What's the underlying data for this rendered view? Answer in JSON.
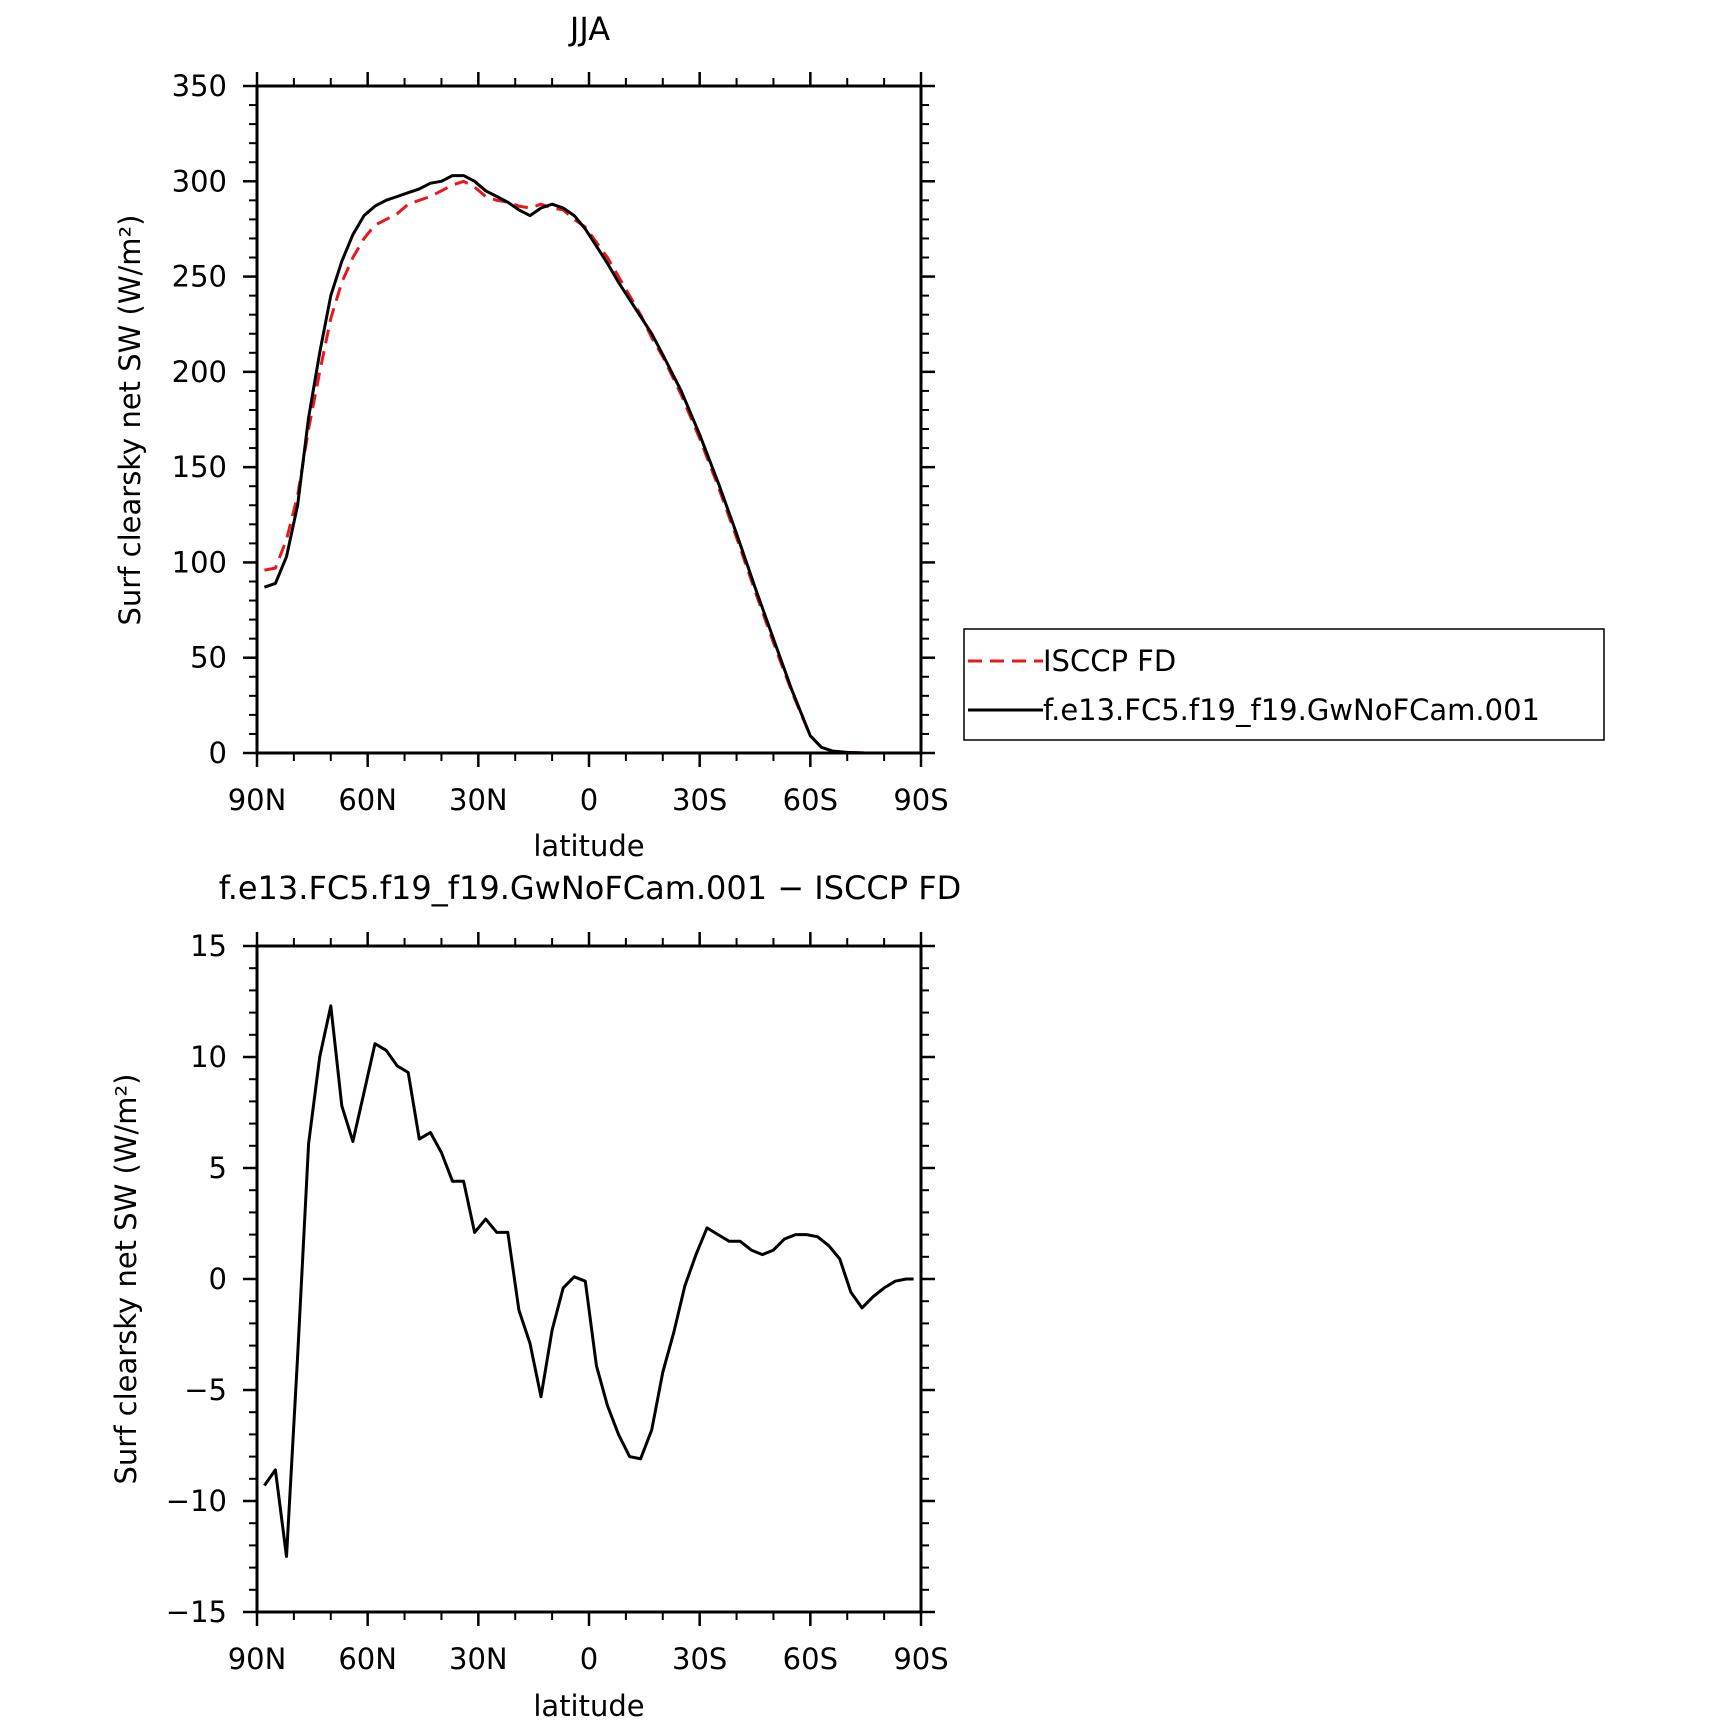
{
  "chart_data": [
    {
      "type": "line",
      "title": "JJA",
      "xlabel": "latitude",
      "ylabel": "Surf clearsky net SW (W/m²)",
      "xlim": [
        90,
        -90
      ],
      "ylim": [
        0,
        350
      ],
      "x_ticks": [
        90,
        60,
        30,
        0,
        -30,
        -60,
        -90
      ],
      "x_tick_labels": [
        "90N",
        "60N",
        "30N",
        "0",
        "30S",
        "60S",
        "90S"
      ],
      "y_ticks": [
        0,
        50,
        100,
        150,
        200,
        250,
        300,
        350
      ],
      "y_tick_labels": [
        "0",
        "50",
        "100",
        "150",
        "200",
        "250",
        "300",
        "350"
      ],
      "legend": {
        "placement": "right",
        "entries": [
          "ISCCP FD",
          "f.e13.FC5.f19_f19.GwNoFCam.001"
        ]
      },
      "series": [
        {
          "name": "ISCCP FD",
          "color": "#e8191e",
          "dash": "dashed",
          "x": [
            88,
            85,
            82,
            79,
            76,
            73,
            70,
            67,
            64,
            61,
            58,
            55,
            52,
            49,
            46,
            43,
            40,
            37,
            34,
            31,
            28,
            25,
            22,
            19,
            16,
            13,
            10,
            7,
            4,
            1,
            -2,
            -5,
            -8,
            -11,
            -14,
            -17,
            -20,
            -25,
            -30,
            -35,
            -40,
            -45,
            -50,
            -55,
            -60,
            -63,
            -66,
            -70,
            -75,
            -80,
            -88
          ],
          "values": [
            96,
            97,
            112,
            135,
            170,
            200,
            228,
            247,
            260,
            270,
            277,
            280,
            283,
            288,
            290,
            292,
            295,
            298,
            300,
            297,
            292,
            290,
            289,
            287,
            286,
            288,
            286,
            285,
            280,
            276,
            268,
            260,
            250,
            240,
            230,
            218,
            208,
            188,
            165,
            140,
            113,
            85,
            58,
            32,
            9,
            3,
            1,
            0.3,
            0,
            0,
            0
          ]
        },
        {
          "name": "f.e13.FC5.f19_f19.GwNoFCam.001",
          "color": "#000000",
          "dash": "solid",
          "x": [
            88,
            85,
            82,
            79,
            76,
            73,
            70,
            67,
            64,
            61,
            58,
            55,
            52,
            49,
            46,
            43,
            40,
            37,
            34,
            31,
            28,
            25,
            22,
            19,
            16,
            13,
            10,
            7,
            4,
            1,
            -2,
            -5,
            -8,
            -11,
            -14,
            -17,
            -20,
            -25,
            -30,
            -35,
            -40,
            -45,
            -50,
            -55,
            -60,
            -63,
            -66,
            -70,
            -75,
            -80,
            -88
          ],
          "values": [
            87,
            89,
            103,
            130,
            176,
            210,
            240,
            258,
            272,
            282,
            287,
            290,
            292,
            294,
            296,
            299,
            300,
            303,
            303,
            300,
            295,
            292,
            289,
            285,
            282,
            286,
            288,
            286,
            282,
            275,
            266,
            257,
            247,
            238,
            229,
            220,
            209,
            190,
            167,
            142,
            115,
            87,
            60,
            33,
            9,
            3,
            1,
            0.3,
            0,
            0,
            0
          ]
        }
      ]
    },
    {
      "type": "line",
      "title": "f.e13.FC5.f19_f19.GwNoFCam.001 − ISCCP FD",
      "xlabel": "latitude",
      "ylabel": "Surf clearsky net SW (W/m²)",
      "xlim": [
        90,
        -90
      ],
      "ylim": [
        -15,
        15
      ],
      "x_ticks": [
        90,
        60,
        30,
        0,
        -30,
        -60,
        -90
      ],
      "x_tick_labels": [
        "90N",
        "60N",
        "30N",
        "0",
        "30S",
        "60S",
        "90S"
      ],
      "y_ticks": [
        -15,
        -10,
        -5,
        0,
        5,
        10,
        15
      ],
      "y_tick_labels": [
        "−15",
        "−10",
        "−5",
        "0",
        "5",
        "10",
        "15"
      ],
      "series": [
        {
          "color": "#000000",
          "dash": "solid",
          "x": [
            88,
            85,
            82,
            79,
            76,
            73,
            70,
            67,
            64,
            61,
            58,
            55,
            52,
            49,
            46,
            43,
            40,
            37,
            34,
            31,
            28,
            25,
            22,
            19,
            16,
            13,
            10,
            7,
            4,
            1,
            -2,
            -5,
            -8,
            -11,
            -14,
            -17,
            -20,
            -23,
            -26,
            -29,
            -32,
            -35,
            -38,
            -41,
            -44,
            -47,
            -50,
            -53,
            -56,
            -59,
            -62,
            -65,
            -68,
            -71,
            -74,
            -77,
            -80,
            -83,
            -86,
            -88
          ],
          "values": [
            -9.3,
            -8.6,
            -12.5,
            -3.5,
            6.1,
            10.0,
            12.3,
            7.8,
            6.2,
            8.4,
            10.6,
            10.3,
            9.6,
            9.3,
            6.3,
            6.6,
            5.7,
            4.4,
            4.4,
            2.1,
            2.7,
            2.1,
            2.1,
            -1.4,
            -2.9,
            -5.3,
            -2.3,
            -0.4,
            0.1,
            -0.1,
            -3.9,
            -5.7,
            -7.0,
            -8.0,
            -8.1,
            -6.8,
            -4.2,
            -2.4,
            -0.3,
            1.1,
            2.3,
            2.0,
            1.7,
            1.7,
            1.3,
            1.1,
            1.3,
            1.8,
            2.0,
            2.0,
            1.9,
            1.5,
            0.9,
            -0.6,
            -1.3,
            -0.8,
            -0.4,
            -0.1,
            0,
            0
          ]
        }
      ]
    }
  ]
}
